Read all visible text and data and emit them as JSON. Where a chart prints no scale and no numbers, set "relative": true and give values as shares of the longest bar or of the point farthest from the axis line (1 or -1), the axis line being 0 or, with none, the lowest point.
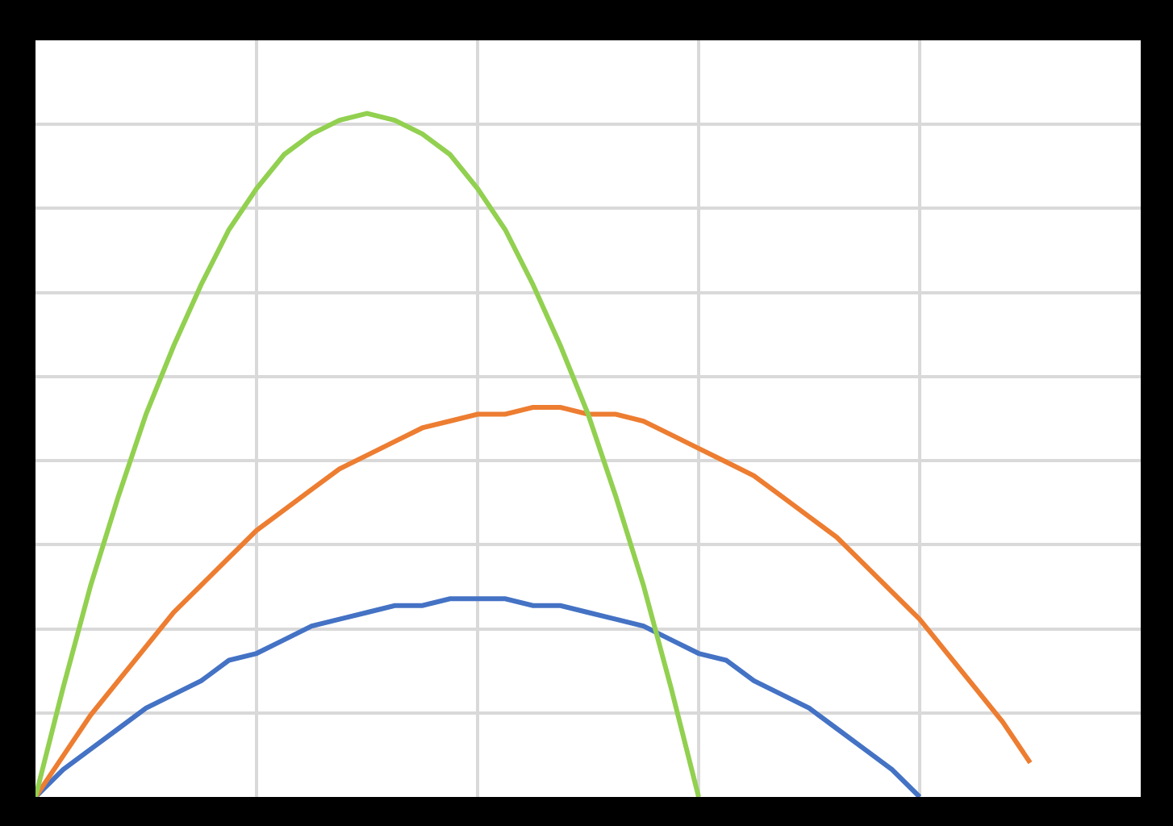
{
  "chart_data": {
    "type": "line",
    "relative": true,
    "grid": true,
    "marker": "none",
    "line_style": "solid",
    "categories": [
      null,
      null,
      null,
      null,
      null,
      null,
      null,
      null,
      null,
      null,
      null,
      null,
      null,
      null,
      null,
      null,
      null,
      null,
      null,
      null,
      null,
      null,
      null,
      null,
      null,
      null,
      null,
      null,
      null,
      null,
      null,
      null,
      null,
      null,
      null,
      null,
      null,
      null,
      null,
      null,
      null
    ],
    "series": [
      {
        "color": "#4472c4",
        "values": [
          0,
          0.04,
          0.07,
          0.1,
          0.13,
          0.15,
          0.17,
          0.2,
          0.21,
          0.23,
          0.25,
          0.26,
          0.27,
          0.28,
          0.28,
          0.29,
          0.29,
          0.29,
          0.28,
          0.28,
          0.27,
          0.26,
          0.25,
          0.23,
          0.21,
          0.2,
          0.17,
          0.15,
          0.13,
          0.1,
          0.07,
          0.04,
          0,
          null,
          null,
          null,
          null,
          null,
          null,
          null,
          null
        ]
      },
      {
        "color": "#ed7d31",
        "values": [
          0,
          0.06,
          0.12,
          0.17,
          0.22,
          0.27,
          0.31,
          0.35,
          0.39,
          0.42,
          0.45,
          0.48,
          0.5,
          0.52,
          0.54,
          0.55,
          0.56,
          0.56,
          0.57,
          0.57,
          0.56,
          0.56,
          0.55,
          0.53,
          0.51,
          0.49,
          0.47,
          0.44,
          0.41,
          0.38,
          0.34,
          0.3,
          0.26,
          0.21,
          0.16,
          0.11,
          0.05,
          null,
          null,
          null,
          null
        ]
      },
      {
        "color": "#92d050",
        "values": [
          0,
          0.16,
          0.31,
          0.44,
          0.56,
          0.66,
          0.75,
          0.83,
          0.89,
          0.94,
          0.97,
          0.99,
          1,
          0.99,
          0.97,
          0.94,
          0.89,
          0.83,
          0.75,
          0.66,
          0.56,
          0.44,
          0.31,
          0.16,
          0,
          null,
          null,
          null,
          null,
          null,
          null,
          null,
          null,
          null,
          null,
          null,
          null,
          null,
          null,
          null,
          null
        ]
      }
    ]
  }
}
